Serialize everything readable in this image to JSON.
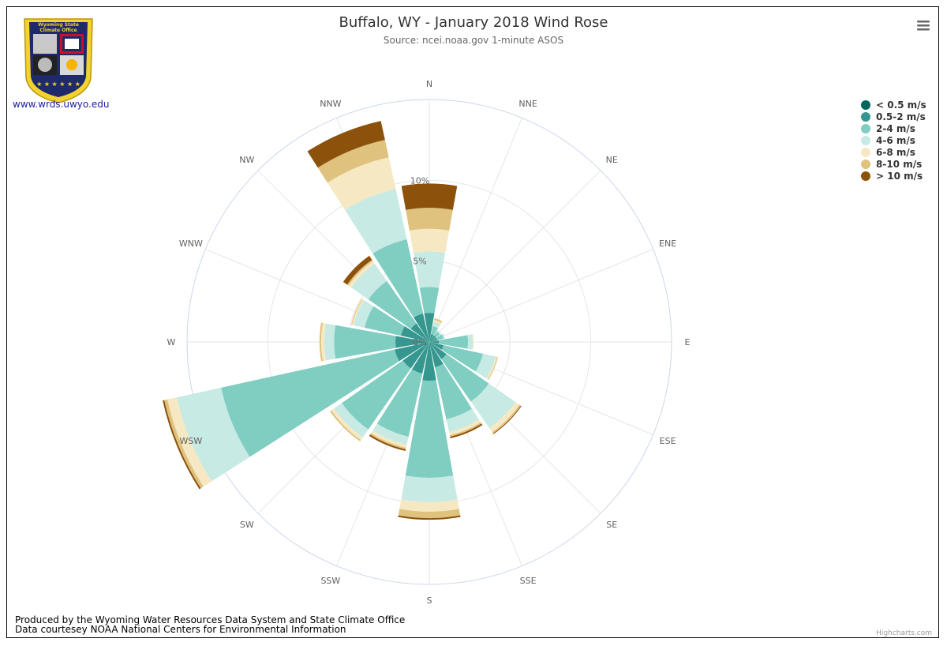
{
  "chart_data": {
    "type": "windrose",
    "title": "Buffalo, WY - January 2018 Wind Rose",
    "subtitle": "Source: ncei.noaa.gov 1-minute ASOS",
    "directions": [
      "N",
      "NNE",
      "NE",
      "ENE",
      "E",
      "ESE",
      "SE",
      "SSE",
      "S",
      "SSW",
      "SW",
      "WSW",
      "W",
      "WNW",
      "NW",
      "NNW"
    ],
    "ring_labels": [
      "0%",
      "5%",
      "10%"
    ],
    "radial_max": 15,
    "series": [
      {
        "name": "< 0.5 m/s",
        "color": "#01665e",
        "values": [
          0,
          0,
          0,
          0,
          0,
          0,
          0,
          0,
          0,
          0,
          0,
          0,
          0,
          0,
          0,
          0
        ]
      },
      {
        "name": "0.5-2 m/s",
        "color": "#35978f",
        "values": [
          1.8,
          0.5,
          0.5,
          0.5,
          0.6,
          0.9,
          1.3,
          1.6,
          2.4,
          2.0,
          2.0,
          2.2,
          2.1,
          1.8,
          1.4,
          1.8
        ]
      },
      {
        "name": "2-4 m/s",
        "color": "#80cdc1",
        "values": [
          1.6,
          0.5,
          0.3,
          0.4,
          1.8,
          2.5,
          3.2,
          3.3,
          6.0,
          4.0,
          4.6,
          11.0,
          3.8,
          2.3,
          3.2,
          4.7
        ]
      },
      {
        "name": "4-6 m/s",
        "color": "#c7eae5",
        "values": [
          2.2,
          0.3,
          0.1,
          0.1,
          0.3,
          0.8,
          2.0,
          0.8,
          1.5,
          0.5,
          0.6,
          2.8,
          0.6,
          0.7,
          1.3,
          3.2
        ]
      },
      {
        "name": "6-8 m/s",
        "color": "#f6e8c3",
        "values": [
          1.4,
          0.1,
          0,
          0,
          0.05,
          0.1,
          0.3,
          0.2,
          0.6,
          0.2,
          0.2,
          0.6,
          0.2,
          0.1,
          0.2,
          2.0
        ]
      },
      {
        "name": "8-10 m/s",
        "color": "#dfc27d",
        "values": [
          1.3,
          0.1,
          0,
          0,
          0,
          0.05,
          0.1,
          0.1,
          0.4,
          0.1,
          0.1,
          0.2,
          0.1,
          0.05,
          0.1,
          1.1
        ]
      },
      {
        "name": "> 10 m/s",
        "color": "#8c510a",
        "values": [
          1.5,
          0,
          0,
          0,
          0,
          0,
          0.05,
          0.1,
          0.1,
          0.1,
          0,
          0.1,
          0,
          0,
          0.3,
          1.2
        ]
      }
    ],
    "legend_position": "top-right",
    "grid": true
  },
  "header": {
    "site_link": "www.wrds.uwyo.edu",
    "logo_title_line1": "Wyoming State",
    "logo_title_line2": "Climate Office",
    "menu_icon": "hamburger-menu-icon"
  },
  "footer": {
    "line1": "Produced by the Wyoming Water Resources Data System and State Climate Office",
    "line2": "Data courtesey NOAA National Centers for Environmental Information",
    "credit": "Highcharts.com"
  }
}
